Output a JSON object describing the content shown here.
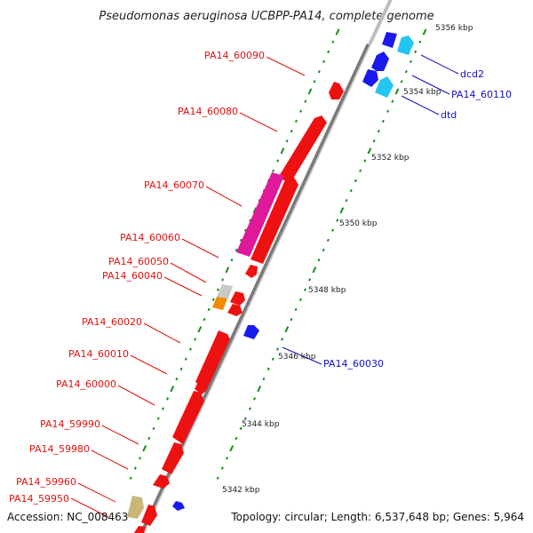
{
  "title": "Pseudomonas aeruginosa UCBPP-PA14, complete genome",
  "accession": "Accession: NC_008463",
  "summary": "Topology: circular; Length: 6,537,648 bp; Genes: 5,964",
  "colors": {
    "red_label": "#e01010",
    "blue_label": "#1010c0",
    "tick": "#1a8a1a",
    "backbone": "#909090"
  },
  "scale": [
    {
      "label": "5342 kbp"
    },
    {
      "label": "5344 kbp"
    },
    {
      "label": "5346 kbp"
    },
    {
      "label": "5348 kbp"
    },
    {
      "label": "5350 kbp"
    },
    {
      "label": "5352 kbp"
    },
    {
      "label": "5354 kbp"
    },
    {
      "label": "5356 kbp"
    }
  ],
  "genes": [
    {
      "name": "PA14_60090",
      "color": "#e01010"
    },
    {
      "name": "PA14_60080",
      "color": "#e01010"
    },
    {
      "name": "PA14_60070",
      "color": "#e01010"
    },
    {
      "name": "PA14_60060",
      "color": "#e01010"
    },
    {
      "name": "PA14_60050",
      "color": "#e01010"
    },
    {
      "name": "PA14_60040",
      "color": "#e01010"
    },
    {
      "name": "PA14_60020",
      "color": "#e01010"
    },
    {
      "name": "PA14_60010",
      "color": "#e01010"
    },
    {
      "name": "PA14_60000",
      "color": "#e01010"
    },
    {
      "name": "PA14_59990",
      "color": "#e01010"
    },
    {
      "name": "PA14_59980",
      "color": "#e01010"
    },
    {
      "name": "PA14_59960",
      "color": "#e01010"
    },
    {
      "name": "PA14_59950",
      "color": "#e01010"
    },
    {
      "name": "dcd2",
      "color": "#1010c0"
    },
    {
      "name": "PA14_60110",
      "color": "#1010c0"
    },
    {
      "name": "dtd",
      "color": "#1010c0"
    },
    {
      "name": "PA14_60030",
      "color": "#1010c0"
    }
  ]
}
